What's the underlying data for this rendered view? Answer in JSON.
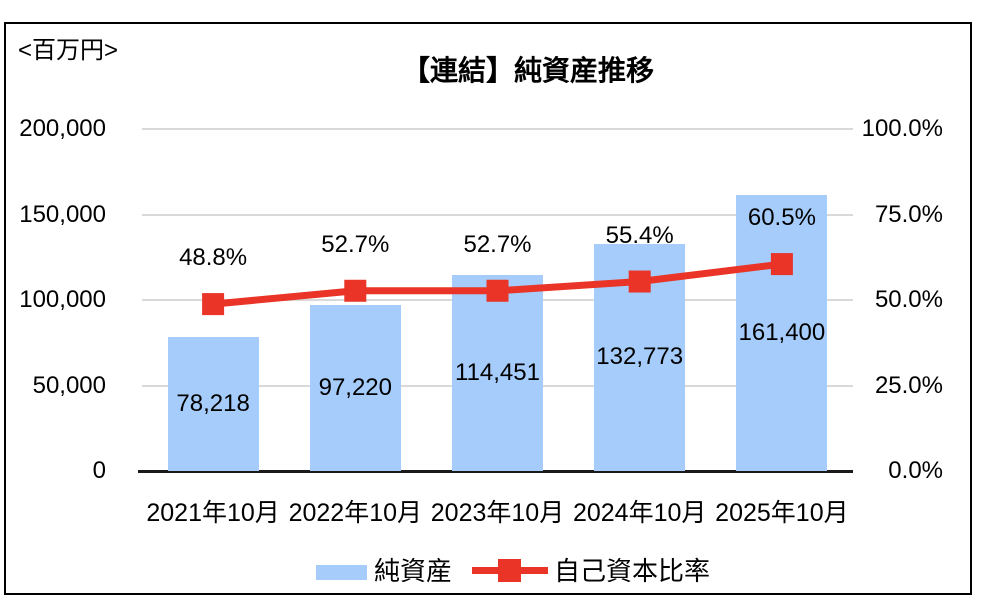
{
  "unit_label": "<百万円>",
  "title": "【連結】純資産推移",
  "colors": {
    "bar_fill": "#A5CCFA",
    "line_red": "#E93427",
    "gridline": "#D9D9D9",
    "axis_line": "#1A1A1A",
    "text": "#000000",
    "frame_border": "#000000"
  },
  "chart_data": {
    "type": "combo-bar-line",
    "title": "【連結】純資産推移",
    "unit": "百万円",
    "categories": [
      "2021年10月",
      "2022年10月",
      "2023年10月",
      "2024年10月",
      "2025年10月"
    ],
    "series": [
      {
        "name": "純資産",
        "type": "bar",
        "axis": "left",
        "values": [
          78218,
          97220,
          114451,
          132773,
          161400
        ],
        "labels": [
          "78,218",
          "97,220",
          "114,451",
          "132,773",
          "161,400"
        ]
      },
      {
        "name": "自己資本比率",
        "type": "line",
        "axis": "right",
        "values": [
          48.8,
          52.7,
          52.7,
          55.4,
          60.5
        ],
        "labels": [
          "48.8%",
          "52.7%",
          "52.7%",
          "55.4%",
          "60.5%"
        ]
      }
    ],
    "left_axis": {
      "min": 0,
      "max": 200000,
      "ticks": [
        "200,000",
        "150,000",
        "100,000",
        "50,000",
        "0"
      ]
    },
    "right_axis": {
      "min": 0,
      "max": 100,
      "ticks": [
        "100.0%",
        "75.0%",
        "50.0%",
        "25.0%",
        "0.0%"
      ]
    },
    "grid": true,
    "legend_position": "bottom"
  },
  "legend": {
    "items": [
      {
        "label": "純資産",
        "marker": "bar-swatch"
      },
      {
        "label": "自己資本比率",
        "marker": "line-square"
      }
    ]
  }
}
